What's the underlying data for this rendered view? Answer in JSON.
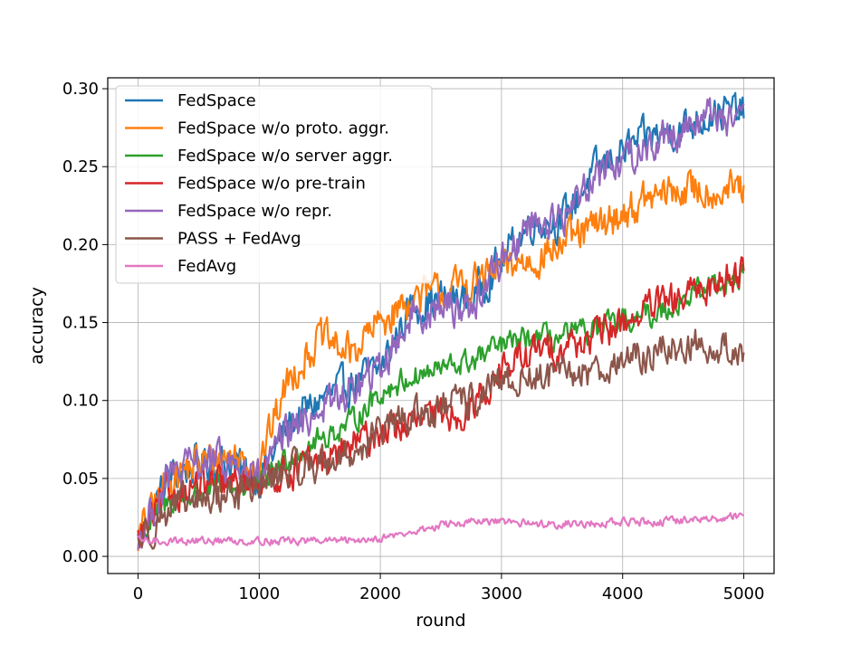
{
  "chart_data": {
    "type": "line",
    "xlabel": "round",
    "ylabel": "accuracy",
    "xlim": [
      -250,
      5250
    ],
    "ylim": [
      -0.011,
      0.307
    ],
    "xticks": [
      0,
      1000,
      2000,
      3000,
      4000,
      5000
    ],
    "xtick_labels": [
      "0",
      "1000",
      "2000",
      "3000",
      "4000",
      "5000"
    ],
    "yticks": [
      0.0,
      0.05,
      0.1,
      0.15,
      0.2,
      0.25,
      0.3
    ],
    "ytick_labels": [
      "0.00",
      "0.05",
      "0.10",
      "0.15",
      "0.20",
      "0.25",
      "0.30"
    ],
    "grid": true,
    "legend_position": "upper-left",
    "x": [
      0,
      250,
      500,
      750,
      1000,
      1250,
      1500,
      1750,
      2000,
      2250,
      2500,
      2750,
      3000,
      3250,
      3500,
      3750,
      4000,
      4250,
      4500,
      4750,
      5000
    ],
    "series": [
      {
        "name": "FedSpace",
        "color": "#1f77b4",
        "noise": 0.012,
        "values": [
          0.01,
          0.05,
          0.06,
          0.06,
          0.05,
          0.085,
          0.1,
          0.11,
          0.12,
          0.16,
          0.165,
          0.165,
          0.19,
          0.215,
          0.215,
          0.245,
          0.26,
          0.27,
          0.275,
          0.285,
          0.285
        ]
      },
      {
        "name": "FedSpace w/o proto. aggr.",
        "color": "#ff7f0e",
        "noise": 0.012,
        "values": [
          0.012,
          0.05,
          0.06,
          0.065,
          0.06,
          0.115,
          0.14,
          0.13,
          0.15,
          0.165,
          0.17,
          0.175,
          0.185,
          0.19,
          0.2,
          0.21,
          0.22,
          0.23,
          0.235,
          0.235,
          0.235
        ]
      },
      {
        "name": "FedSpace w/o server aggr.",
        "color": "#2ca02c",
        "noise": 0.008,
        "values": [
          0.01,
          0.035,
          0.04,
          0.045,
          0.045,
          0.065,
          0.075,
          0.085,
          0.105,
          0.115,
          0.12,
          0.125,
          0.135,
          0.14,
          0.14,
          0.145,
          0.15,
          0.155,
          0.165,
          0.175,
          0.18
        ]
      },
      {
        "name": "FedSpace w/o pre-train",
        "color": "#d62728",
        "noise": 0.011,
        "values": [
          0.01,
          0.04,
          0.045,
          0.045,
          0.05,
          0.055,
          0.06,
          0.07,
          0.08,
          0.085,
          0.09,
          0.095,
          0.12,
          0.13,
          0.135,
          0.14,
          0.15,
          0.16,
          0.165,
          0.175,
          0.185
        ]
      },
      {
        "name": "FedSpace w/o repr.",
        "color": "#9467bd",
        "noise": 0.012,
        "values": [
          0.01,
          0.05,
          0.06,
          0.06,
          0.05,
          0.08,
          0.095,
          0.105,
          0.12,
          0.155,
          0.16,
          0.16,
          0.19,
          0.215,
          0.215,
          0.245,
          0.255,
          0.265,
          0.275,
          0.285,
          0.275
        ]
      },
      {
        "name": "PASS + FedAvg",
        "color": "#8c564b",
        "noise": 0.011,
        "values": [
          0.01,
          0.03,
          0.035,
          0.04,
          0.045,
          0.055,
          0.06,
          0.065,
          0.08,
          0.09,
          0.095,
          0.1,
          0.11,
          0.115,
          0.115,
          0.12,
          0.125,
          0.13,
          0.135,
          0.135,
          0.13
        ]
      },
      {
        "name": "FedAvg",
        "color": "#e377c2",
        "noise": 0.0025,
        "values": [
          0.01,
          0.01,
          0.01,
          0.01,
          0.01,
          0.01,
          0.01,
          0.01,
          0.012,
          0.015,
          0.02,
          0.022,
          0.022,
          0.021,
          0.021,
          0.021,
          0.022,
          0.022,
          0.023,
          0.024,
          0.027
        ]
      }
    ]
  }
}
